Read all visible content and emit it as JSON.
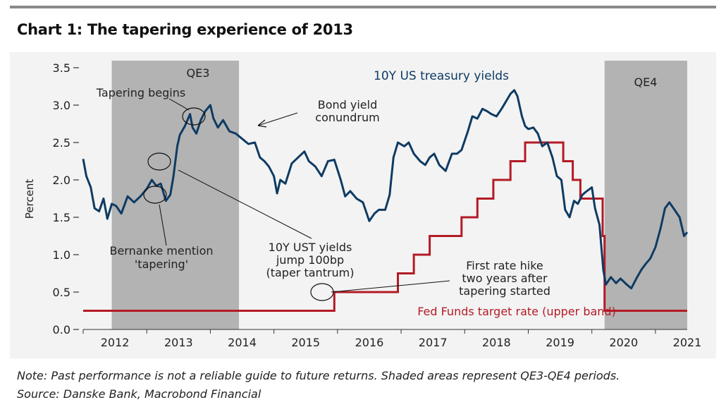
{
  "header": {
    "title": "Chart 1: The tapering experience of 2013"
  },
  "footer": {
    "note": "Note: Past performance is not a reliable guide to future returns. Shaded areas represent QE3-QE4 periods.",
    "source": "Source: Danske Bank, Macrobond Financial"
  },
  "colors": {
    "yield": "#0e3b63",
    "fed": "#b31b25",
    "shade": "#b3b3b3",
    "text_blue": "#0e3b63",
    "text_red": "#b31b25"
  },
  "chart_data": {
    "type": "line",
    "ylabel": "Percent",
    "ylim": [
      0,
      3.5
    ],
    "yticks": [
      "0.0",
      "0.5",
      "1.0",
      "1.5",
      "2.0",
      "2.5",
      "3.0",
      "3.5"
    ],
    "xlim": [
      2012.0,
      2021.5
    ],
    "xticks": [
      "2012",
      "2013",
      "2014",
      "2015",
      "2016",
      "2017",
      "2018",
      "2019",
      "2020",
      "2021"
    ],
    "shaded_periods": [
      {
        "label": "QE3",
        "start": 2012.45,
        "end": 2014.45
      },
      {
        "label": "QE4",
        "start": 2020.2,
        "end": 2021.5
      }
    ],
    "series": [
      {
        "name": "10Y US treasury yields",
        "points": [
          [
            2012.0,
            2.28
          ],
          [
            2012.05,
            2.05
          ],
          [
            2012.12,
            1.9
          ],
          [
            2012.18,
            1.62
          ],
          [
            2012.25,
            1.58
          ],
          [
            2012.32,
            1.75
          ],
          [
            2012.38,
            1.48
          ],
          [
            2012.45,
            1.68
          ],
          [
            2012.52,
            1.65
          ],
          [
            2012.6,
            1.55
          ],
          [
            2012.7,
            1.78
          ],
          [
            2012.8,
            1.7
          ],
          [
            2012.9,
            1.78
          ],
          [
            2013.0,
            1.88
          ],
          [
            2013.08,
            2.0
          ],
          [
            2013.15,
            1.92
          ],
          [
            2013.22,
            1.95
          ],
          [
            2013.3,
            1.72
          ],
          [
            2013.37,
            1.8
          ],
          [
            2013.42,
            2.05
          ],
          [
            2013.48,
            2.45
          ],
          [
            2013.52,
            2.6
          ],
          [
            2013.6,
            2.72
          ],
          [
            2013.68,
            2.88
          ],
          [
            2013.72,
            2.7
          ],
          [
            2013.78,
            2.62
          ],
          [
            2013.85,
            2.8
          ],
          [
            2013.92,
            2.92
          ],
          [
            2014.0,
            3.0
          ],
          [
            2014.05,
            2.82
          ],
          [
            2014.12,
            2.7
          ],
          [
            2014.2,
            2.8
          ],
          [
            2014.3,
            2.65
          ],
          [
            2014.4,
            2.62
          ],
          [
            2014.5,
            2.55
          ],
          [
            2014.6,
            2.48
          ],
          [
            2014.7,
            2.5
          ],
          [
            2014.78,
            2.3
          ],
          [
            2014.85,
            2.25
          ],
          [
            2014.92,
            2.18
          ],
          [
            2015.0,
            2.05
          ],
          [
            2015.05,
            1.82
          ],
          [
            2015.1,
            2.0
          ],
          [
            2015.18,
            1.95
          ],
          [
            2015.28,
            2.22
          ],
          [
            2015.38,
            2.3
          ],
          [
            2015.48,
            2.38
          ],
          [
            2015.55,
            2.25
          ],
          [
            2015.65,
            2.18
          ],
          [
            2015.75,
            2.05
          ],
          [
            2015.85,
            2.25
          ],
          [
            2015.95,
            2.27
          ],
          [
            2016.05,
            2.0
          ],
          [
            2016.12,
            1.78
          ],
          [
            2016.2,
            1.85
          ],
          [
            2016.3,
            1.75
          ],
          [
            2016.4,
            1.7
          ],
          [
            2016.5,
            1.45
          ],
          [
            2016.58,
            1.55
          ],
          [
            2016.65,
            1.6
          ],
          [
            2016.75,
            1.6
          ],
          [
            2016.82,
            1.8
          ],
          [
            2016.88,
            2.3
          ],
          [
            2016.95,
            2.5
          ],
          [
            2017.05,
            2.45
          ],
          [
            2017.12,
            2.5
          ],
          [
            2017.2,
            2.35
          ],
          [
            2017.3,
            2.25
          ],
          [
            2017.38,
            2.2
          ],
          [
            2017.45,
            2.3
          ],
          [
            2017.52,
            2.35
          ],
          [
            2017.6,
            2.2
          ],
          [
            2017.7,
            2.12
          ],
          [
            2017.8,
            2.35
          ],
          [
            2017.88,
            2.35
          ],
          [
            2017.95,
            2.4
          ],
          [
            2018.05,
            2.65
          ],
          [
            2018.12,
            2.85
          ],
          [
            2018.2,
            2.82
          ],
          [
            2018.28,
            2.95
          ],
          [
            2018.35,
            2.92
          ],
          [
            2018.42,
            2.88
          ],
          [
            2018.5,
            2.85
          ],
          [
            2018.58,
            2.95
          ],
          [
            2018.65,
            3.05
          ],
          [
            2018.72,
            3.15
          ],
          [
            2018.78,
            3.2
          ],
          [
            2018.83,
            3.12
          ],
          [
            2018.9,
            2.85
          ],
          [
            2018.95,
            2.72
          ],
          [
            2019.0,
            2.68
          ],
          [
            2019.08,
            2.7
          ],
          [
            2019.15,
            2.62
          ],
          [
            2019.22,
            2.45
          ],
          [
            2019.3,
            2.5
          ],
          [
            2019.38,
            2.3
          ],
          [
            2019.45,
            2.05
          ],
          [
            2019.52,
            2.0
          ],
          [
            2019.58,
            1.6
          ],
          [
            2019.65,
            1.5
          ],
          [
            2019.72,
            1.72
          ],
          [
            2019.78,
            1.68
          ],
          [
            2019.85,
            1.8
          ],
          [
            2019.92,
            1.85
          ],
          [
            2020.0,
            1.9
          ],
          [
            2020.05,
            1.62
          ],
          [
            2020.12,
            1.4
          ],
          [
            2020.18,
            0.8
          ],
          [
            2020.22,
            0.6
          ],
          [
            2020.3,
            0.7
          ],
          [
            2020.38,
            0.62
          ],
          [
            2020.45,
            0.68
          ],
          [
            2020.55,
            0.6
          ],
          [
            2020.62,
            0.55
          ],
          [
            2020.7,
            0.68
          ],
          [
            2020.78,
            0.8
          ],
          [
            2020.85,
            0.88
          ],
          [
            2020.92,
            0.95
          ],
          [
            2021.0,
            1.1
          ],
          [
            2021.08,
            1.35
          ],
          [
            2021.15,
            1.62
          ],
          [
            2021.22,
            1.7
          ],
          [
            2021.3,
            1.6
          ],
          [
            2021.38,
            1.5
          ],
          [
            2021.45,
            1.25
          ],
          [
            2021.5,
            1.3
          ]
        ]
      },
      {
        "name": "Fed Funds target rate (upper band)",
        "step": true,
        "points": [
          [
            2012.0,
            0.25
          ],
          [
            2015.95,
            0.25
          ],
          [
            2015.95,
            0.5
          ],
          [
            2016.95,
            0.5
          ],
          [
            2016.95,
            0.75
          ],
          [
            2017.2,
            0.75
          ],
          [
            2017.2,
            1.0
          ],
          [
            2017.45,
            1.0
          ],
          [
            2017.45,
            1.25
          ],
          [
            2017.95,
            1.25
          ],
          [
            2017.95,
            1.5
          ],
          [
            2018.2,
            1.5
          ],
          [
            2018.2,
            1.75
          ],
          [
            2018.45,
            1.75
          ],
          [
            2018.45,
            2.0
          ],
          [
            2018.72,
            2.0
          ],
          [
            2018.72,
            2.25
          ],
          [
            2018.95,
            2.25
          ],
          [
            2018.95,
            2.5
          ],
          [
            2019.55,
            2.5
          ],
          [
            2019.55,
            2.25
          ],
          [
            2019.7,
            2.25
          ],
          [
            2019.7,
            2.0
          ],
          [
            2019.82,
            2.0
          ],
          [
            2019.82,
            1.75
          ],
          [
            2020.17,
            1.75
          ],
          [
            2020.17,
            1.25
          ],
          [
            2020.2,
            1.25
          ],
          [
            2020.2,
            0.25
          ],
          [
            2021.5,
            0.25
          ]
        ]
      }
    ],
    "annotations": [
      {
        "text": "QE3"
      },
      {
        "text": "QE4"
      },
      {
        "text": "10Y US treasury yields"
      },
      {
        "text": "Tapering begins"
      },
      {
        "text": "Bond yield"
      },
      {
        "text": "conundrum"
      },
      {
        "text": "Bernanke mention"
      },
      {
        "text": "'tapering'"
      },
      {
        "text": "10Y UST yields"
      },
      {
        "text": "jump 100bp"
      },
      {
        "text": "(taper tantrum)"
      },
      {
        "text": "First rate hike"
      },
      {
        "text": "two years after"
      },
      {
        "text": "tapering started"
      },
      {
        "text": "Fed Funds target rate (upper band)"
      }
    ]
  }
}
